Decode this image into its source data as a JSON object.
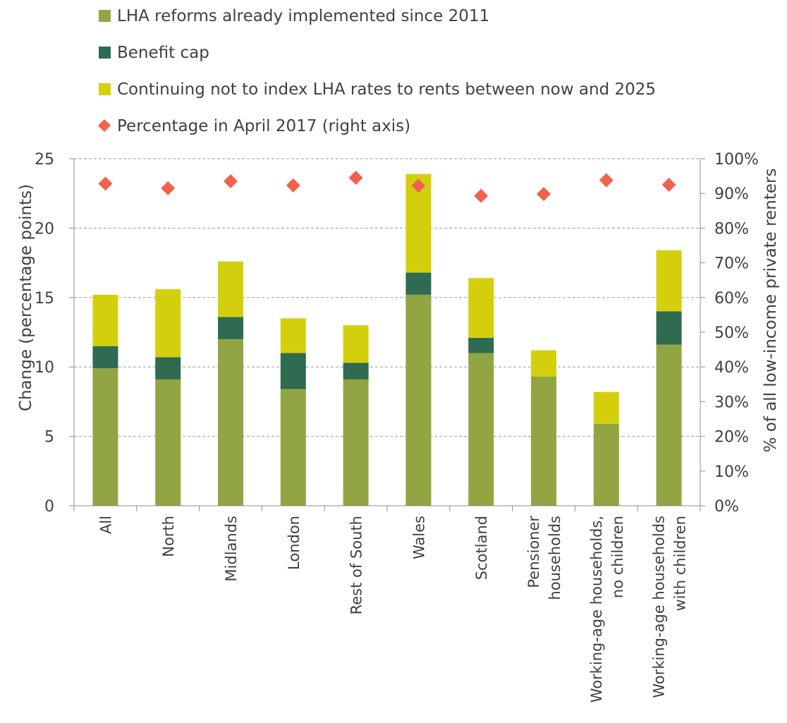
{
  "chart_data": {
    "type": "bar",
    "stacked": true,
    "categories": [
      [
        "All"
      ],
      [
        "North"
      ],
      [
        "Midlands"
      ],
      [
        "London"
      ],
      [
        "Rest of South"
      ],
      [
        "Wales"
      ],
      [
        "Scotland"
      ],
      [
        "Pensioner",
        "households"
      ],
      [
        "Working-age households,",
        "no children"
      ],
      [
        "Working-age households",
        "with children"
      ]
    ],
    "series": [
      {
        "name": "LHA reforms already implemented since 2011",
        "color": "#92a543",
        "values": [
          9.9,
          9.1,
          12.0,
          8.4,
          9.1,
          15.2,
          11.0,
          9.3,
          5.9,
          11.6
        ]
      },
      {
        "name": "Benefit cap",
        "color": "#2e6b50",
        "values": [
          1.6,
          1.6,
          1.6,
          2.6,
          1.2,
          1.6,
          1.1,
          0,
          0,
          2.4
        ]
      },
      {
        "name": "Continuing not to index LHA rates to rents between now and 2025",
        "color": "#d4cf0d",
        "values": [
          3.7,
          4.9,
          4.0,
          2.5,
          2.7,
          7.1,
          4.3,
          1.9,
          2.3,
          4.4
        ]
      }
    ],
    "secondary_series": {
      "name": "Percentage in April 2017 (right axis)",
      "color": "#f0624d",
      "marker": "diamond",
      "values": [
        92.8,
        91.5,
        93.5,
        92.3,
        94.5,
        92.2,
        89.3,
        89.8,
        93.8,
        92.5
      ]
    },
    "ylabel": "Change (percentage points)",
    "ylim": [
      0,
      25
    ],
    "yticks": [
      0,
      5,
      10,
      15,
      20,
      25
    ],
    "y2label": "% of all low-income private renters",
    "y2lim": [
      0,
      100
    ],
    "y2ticks": [
      "0%",
      "10%",
      "20%",
      "30%",
      "40%",
      "50%",
      "60%",
      "70%",
      "80%",
      "90%",
      "100%"
    ],
    "grid": true,
    "legend_position": "top-left"
  }
}
